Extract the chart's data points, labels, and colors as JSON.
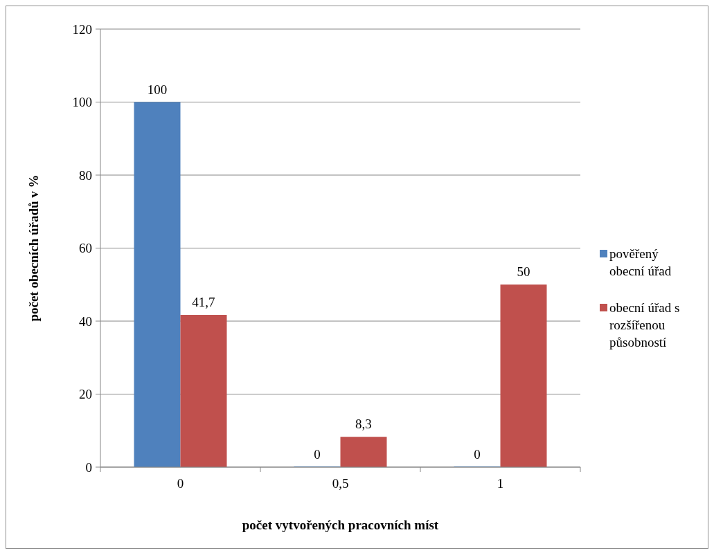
{
  "chart_data": {
    "type": "bar",
    "xlabel": "počet vytvořených pracovních míst",
    "ylabel": "počet obecních úřadů v %",
    "categories": [
      "0",
      "0,5",
      "1"
    ],
    "series": [
      {
        "name": "pověřený obecní úřad",
        "color": "#4f81bd",
        "values": [
          100,
          0,
          0
        ],
        "value_labels": [
          "100",
          "0",
          "0"
        ]
      },
      {
        "name": "obecní úřad s rozšířenou působností",
        "color": "#c0504d",
        "values": [
          41.7,
          8.3,
          50
        ],
        "value_labels": [
          "41,7",
          "8,3",
          "50"
        ]
      }
    ],
    "ylim": [
      0,
      120
    ],
    "yticks": [
      0,
      20,
      40,
      60,
      80,
      100,
      120
    ],
    "grid": "y",
    "legend": "right"
  }
}
